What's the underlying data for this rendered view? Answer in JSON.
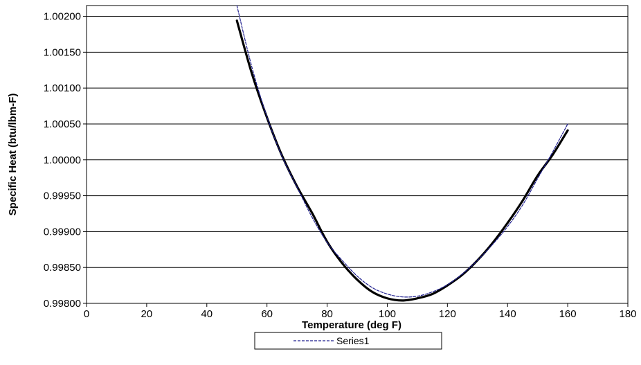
{
  "chart_data": {
    "type": "line",
    "title": "",
    "xlabel": "Temperature (deg F)",
    "ylabel": "Specific Heat (btu/lbm-F)",
    "xlim": [
      0,
      180
    ],
    "ylim": [
      0.998,
      1.00215
    ],
    "x_ticks": [
      "0",
      "20",
      "40",
      "60",
      "80",
      "100",
      "120",
      "140",
      "160",
      "180"
    ],
    "y_ticks": [
      "0.99800",
      "0.99850",
      "0.99900",
      "0.99950",
      "1.00000",
      "1.00050",
      "1.00100",
      "1.00150",
      "1.00200"
    ],
    "grid": "horizontal",
    "legend_position": "bottom",
    "series": [
      {
        "role": "data",
        "color": "#000000",
        "style": "solid",
        "x": [
          50,
          55,
          60,
          65,
          70,
          75,
          80,
          85,
          90,
          95,
          100,
          105,
          110,
          115,
          120,
          125,
          130,
          135,
          140,
          145,
          150,
          155,
          160
        ],
        "y": [
          1.00194,
          1.0012,
          1.00059,
          1.00006,
          0.99963,
          0.99926,
          0.99886,
          0.99856,
          0.99833,
          0.99816,
          0.99807,
          0.99804,
          0.99807,
          0.99813,
          0.99825,
          0.9984,
          0.9986,
          0.99884,
          0.99912,
          0.99943,
          0.99978,
          1.00007,
          1.00041
        ]
      },
      {
        "name": "Series1",
        "color": "#1f1f8f",
        "style": "dashed",
        "x": [
          50,
          55,
          60,
          65,
          70,
          75,
          80,
          85,
          90,
          95,
          100,
          105,
          110,
          115,
          120,
          125,
          130,
          135,
          140,
          145,
          150,
          155,
          160
        ],
        "y": [
          1.00215,
          1.00129,
          1.0006,
          1.00005,
          0.99962,
          0.9992,
          0.99885,
          0.9986,
          0.99838,
          0.99822,
          0.99813,
          0.99809,
          0.9981,
          0.99816,
          0.99826,
          0.99841,
          0.9986,
          0.99882,
          0.99907,
          0.99937,
          0.99974,
          1.00011,
          1.0005
        ]
      }
    ]
  }
}
